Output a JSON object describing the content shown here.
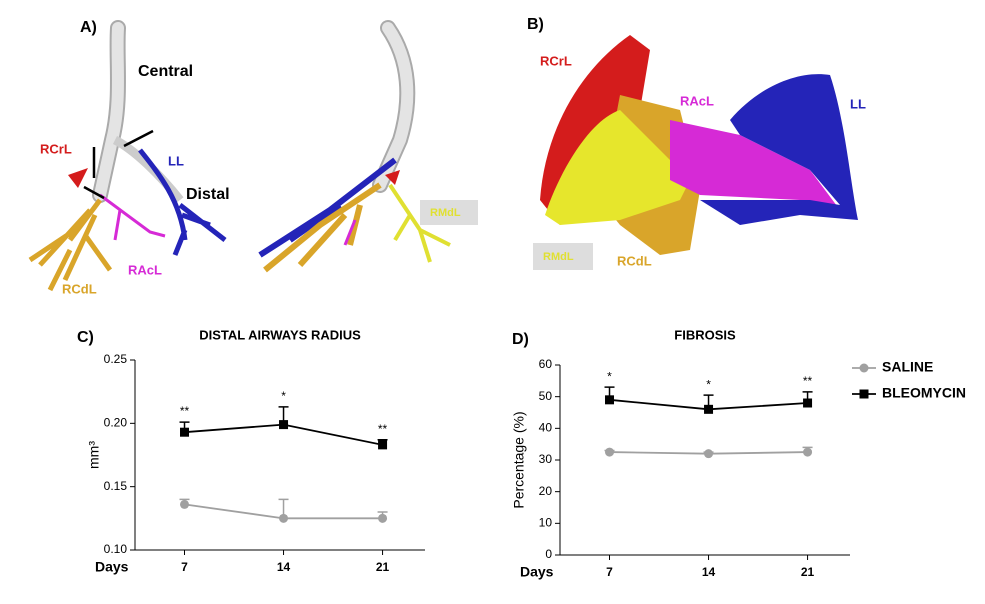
{
  "panels": {
    "a": {
      "label": "A)",
      "central": "Central",
      "rcrl": "RCrL",
      "ll": "LL",
      "distal": "Distal",
      "racl": "RAcL",
      "rcdl": "RCdL",
      "rmdl": "RMdL"
    },
    "b": {
      "label": "B)",
      "rcrl": "RCrL",
      "racl": "RAcL",
      "ll": "LL",
      "rmdl": "RMdL",
      "rcdl": "RCdL"
    },
    "c": {
      "label": "C)"
    },
    "d": {
      "label": "D)"
    }
  },
  "chart_data": [
    {
      "type": "line",
      "title": "DISTAL AIRWAYS RADIUS",
      "y_label": "mm³",
      "x_label": "Days",
      "x": [
        7,
        14,
        21
      ],
      "xlim": [
        3.5,
        24
      ],
      "xticks": [
        7,
        14,
        21
      ],
      "ylim": [
        0.1,
        0.25
      ],
      "yticks": [
        {
          "value": 0.1,
          "label": "0.10"
        },
        0.15,
        {
          "value": 0.2,
          "label": "0.20"
        },
        0.25
      ],
      "series": [
        {
          "color": "#a0a0a0",
          "marker": "circle",
          "values": [
            0.136,
            0.125,
            0.125
          ],
          "errors": [
            0.004,
            0.015,
            0.005
          ]
        },
        {
          "color": "#000000",
          "marker": "square",
          "values": [
            0.193,
            0.199,
            0.183
          ],
          "errors": [
            0.008,
            0.014,
            0.004
          ]
        }
      ],
      "annotations": [
        "**",
        "*",
        "**"
      ]
    },
    {
      "type": "line",
      "title": "FIBROSIS",
      "y_label": "Percentage (%)",
      "x_label": "Days",
      "x": [
        7,
        14,
        21
      ],
      "xlim": [
        3.5,
        24
      ],
      "xticks": [
        7,
        14,
        21
      ],
      "ylim": [
        0,
        60
      ],
      "yticks": [
        0,
        10,
        20,
        30,
        40,
        50,
        60
      ],
      "series": [
        {
          "name": "SALINE",
          "color": "#a0a0a0",
          "marker": "circle",
          "values": [
            32.5,
            32,
            32.5
          ],
          "errors": [
            0.5,
            0.5,
            1.5
          ]
        },
        {
          "name": "BLEOMYCIN",
          "color": "#000000",
          "marker": "square",
          "values": [
            49,
            46,
            48
          ],
          "errors": [
            4,
            4.5,
            3.5
          ]
        }
      ],
      "annotations": [
        "*",
        "*",
        "**"
      ],
      "legend": "right"
    }
  ]
}
